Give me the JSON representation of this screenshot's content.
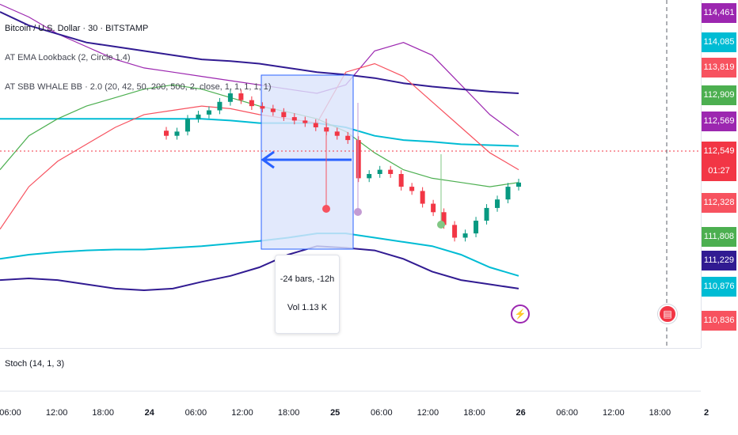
{
  "legend": {
    "symbol": "Bitcoin / U.S. Dollar · 30 · BITSTAMP",
    "indicator1": "AT EMA Lookback (2, Circle 1.4)",
    "indicator2": "AT SBB WHALE BB · 2.0 (20, 42, 50, 200, 500, 2, close, 1, 1, 1, 1, 1)"
  },
  "measure_tooltip": {
    "bars": "-24 bars, -12h",
    "volume": "Vol 1.13 K"
  },
  "stoch_label": "Stoch (14, 1, 3)",
  "price_tags": [
    {
      "label": "114,461",
      "color": "#9c27b0"
    },
    {
      "label": "114,085",
      "color": "#00bcd4"
    },
    {
      "label": "113,819",
      "color": "#f7525f"
    },
    {
      "label": "112,909",
      "color": "#4caf50"
    },
    {
      "label": "112,569",
      "color": "#9c27b0"
    },
    {
      "label": "112,549",
      "color": "#f23645"
    },
    {
      "label": "01:27",
      "color": "#f23645"
    },
    {
      "label": "112,328",
      "color": "#f7525f"
    },
    {
      "label": "111,808",
      "color": "#4caf50"
    },
    {
      "label": "111,229",
      "color": "#311b92"
    },
    {
      "label": "110,876",
      "color": "#00bcd4"
    },
    {
      "label": "110,836",
      "color": "#f7525f"
    }
  ],
  "colors": {
    "up": "#089981",
    "down": "#f23645",
    "green_band": "#4caf50",
    "red_band": "#f7525f",
    "purple_band": "#9c27b0",
    "navy_band": "#311b92",
    "cyan_band": "#00bcd4",
    "measure_fill": "#dbe4fb",
    "measure_line": "#2962ff"
  },
  "icons": {
    "lightning": "lightning-icon",
    "flag": "us-flag-icon"
  },
  "chart_data": {
    "type": "candlestick",
    "title": "Bitcoin / U.S. Dollar · 30 · BITSTAMP",
    "x_ticks": [
      {
        "label": "06:00",
        "major": false
      },
      {
        "label": "12:00",
        "major": false
      },
      {
        "label": "18:00",
        "major": false
      },
      {
        "label": "24",
        "major": true
      },
      {
        "label": "06:00",
        "major": false
      },
      {
        "label": "12:00",
        "major": false
      },
      {
        "label": "18:00",
        "major": false
      },
      {
        "label": "25",
        "major": true
      },
      {
        "label": "06:00",
        "major": false
      },
      {
        "label": "12:00",
        "major": false
      },
      {
        "label": "18:00",
        "major": false
      },
      {
        "label": "26",
        "major": true
      },
      {
        "label": "06:00",
        "major": false
      },
      {
        "label": "12:00",
        "major": false
      },
      {
        "label": "18:00",
        "major": false
      },
      {
        "label": "2",
        "major": true
      }
    ],
    "y_range": [
      110600,
      114700
    ],
    "last_price": 112549,
    "close_series": [
      113100,
      113150,
      113300,
      113350,
      113400,
      113500,
      113600,
      113520,
      113450,
      113420,
      113380,
      113320,
      113280,
      113250,
      113200,
      113150,
      113100,
      113050,
      112600,
      112650,
      112700,
      112650,
      112500,
      112450,
      112300,
      112200,
      112050,
      111900,
      111950,
      112100,
      112250,
      112350,
      112500,
      112549
    ],
    "bands": [
      {
        "color": "purple",
        "values": [
          114650,
          114500,
          114300,
          114150,
          114000,
          113900,
          113850,
          113800,
          113750,
          113700,
          113650,
          113600,
          113700,
          114100,
          114200,
          114050,
          113700,
          113350,
          113100
        ]
      },
      {
        "color": "navy",
        "values": [
          114560,
          114400,
          114300,
          114200,
          114150,
          114100,
          114050,
          114000,
          113980,
          113950,
          113900,
          113850,
          113820,
          113780,
          113720,
          113680,
          113650,
          113620,
          113600
        ]
      },
      {
        "color": "cyan",
        "values": [
          113300,
          113300,
          113300,
          113300,
          113300,
          113300,
          113300,
          113300,
          113280,
          113250,
          113250,
          113250,
          113200,
          113100,
          113050,
          113030,
          113000,
          112990,
          112980
        ]
      },
      {
        "color": "red",
        "values": [
          112000,
          112500,
          112800,
          113000,
          113200,
          113350,
          113400,
          113450,
          113420,
          113350,
          113300,
          113250,
          113850,
          113950,
          113800,
          113500,
          113200,
          112900,
          112700
        ]
      },
      {
        "color": "green",
        "values": [
          112700,
          113100,
          113300,
          113450,
          113550,
          113650,
          113700,
          113650,
          113550,
          113450,
          113380,
          113300,
          113150,
          112900,
          112700,
          112600,
          112550,
          112500,
          112550
        ]
      },
      {
        "color": "cyan2",
        "values": [
          111650,
          111700,
          111730,
          111750,
          111760,
          111760,
          111780,
          111800,
          111830,
          111860,
          111900,
          111950,
          111950,
          111900,
          111850,
          111800,
          111700,
          111550,
          111450
        ]
      },
      {
        "color": "navy2",
        "values": [
          111400,
          111420,
          111400,
          111350,
          111300,
          111280,
          111300,
          111380,
          111450,
          111550,
          111700,
          111800,
          111780,
          111750,
          111650,
          111500,
          111400,
          111350,
          111300
        ]
      }
    ]
  }
}
